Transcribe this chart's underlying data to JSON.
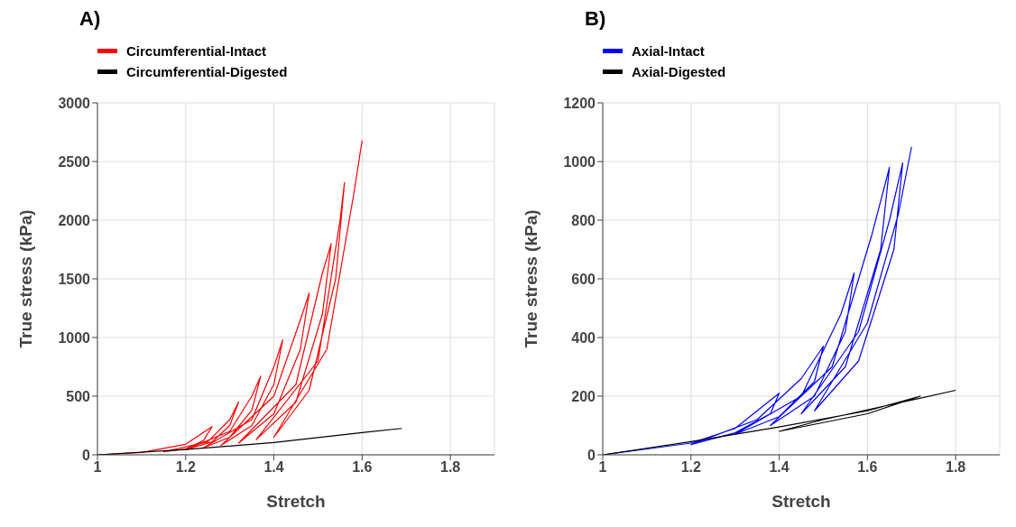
{
  "chart_data": [
    {
      "type": "line",
      "title": "A)",
      "xlabel": "Stretch",
      "ylabel": "True stress (kPa)",
      "xlim": [
        1,
        1.9
      ],
      "xticks": [
        1,
        1.2,
        1.4,
        1.6,
        1.8
      ],
      "ylim": [
        0,
        3000
      ],
      "yticks": [
        0,
        500,
        1000,
        1500,
        2000,
        2500,
        3000
      ],
      "grid": true,
      "legend": "top left",
      "line_style": "solid",
      "marker": "none",
      "series": [
        {
          "name": "Circumferential-Intact",
          "color": "#ff0000",
          "x": [
            1,
            1.1,
            1.2,
            1.26,
            1.24,
            1.2,
            1.15,
            1.25,
            1.3,
            1.32,
            1.3,
            1.26,
            1.2,
            1.3,
            1.35,
            1.37,
            1.35,
            1.3,
            1.24,
            1.35,
            1.4,
            1.42,
            1.4,
            1.35,
            1.28,
            1.4,
            1.46,
            1.48,
            1.46,
            1.4,
            1.32,
            1.45,
            1.51,
            1.53,
            1.51,
            1.45,
            1.36,
            1.5,
            1.55,
            1.56,
            1.54,
            1.48,
            1.4,
            1.52,
            1.58,
            1.6
          ],
          "values": [
            0,
            20,
            90,
            240,
            120,
            50,
            25,
            110,
            300,
            450,
            250,
            110,
            45,
            200,
            500,
            670,
            380,
            150,
            60,
            300,
            750,
            980,
            600,
            250,
            80,
            500,
            1150,
            1380,
            900,
            350,
            100,
            600,
            1550,
            1800,
            1200,
            450,
            130,
            800,
            2000,
            2320,
            1500,
            550,
            150,
            900,
            2200,
            2680
          ]
        },
        {
          "name": "Circumferential-Digested",
          "color": "#000000",
          "x": [
            1,
            1.2,
            1.4,
            1.6,
            1.69
          ],
          "values": [
            0,
            45,
            105,
            190,
            225
          ]
        }
      ]
    },
    {
      "type": "line",
      "title": "B)",
      "xlabel": "Stretch",
      "ylabel": "True stress (kPa)",
      "xlim": [
        1,
        1.9
      ],
      "xticks": [
        1,
        1.2,
        1.4,
        1.6,
        1.8
      ],
      "ylim": [
        0,
        1200
      ],
      "yticks": [
        0,
        200,
        400,
        600,
        800,
        1000,
        1200
      ],
      "grid": true,
      "legend": "top left",
      "line_style": "solid",
      "marker": "none",
      "series": [
        {
          "name": "Axial-Intact",
          "color": "#0000ff",
          "x": [
            1,
            1.2,
            1.3,
            1.4,
            1.38,
            1.3,
            1.2,
            1.35,
            1.45,
            1.5,
            1.48,
            1.4,
            1.3,
            1.45,
            1.54,
            1.57,
            1.55,
            1.48,
            1.38,
            1.52,
            1.61,
            1.65,
            1.63,
            1.55,
            1.45,
            1.58,
            1.65,
            1.68,
            1.66,
            1.58,
            1.48,
            1.6,
            1.67,
            1.7
          ],
          "values": [
            0,
            40,
            90,
            210,
            140,
            75,
            35,
            120,
            260,
            370,
            250,
            130,
            70,
            200,
            480,
            620,
            420,
            200,
            100,
            300,
            750,
            980,
            700,
            300,
            140,
            420,
            800,
            995,
            700,
            320,
            150,
            450,
            820,
            1050
          ]
        },
        {
          "name": "Axial-Digested",
          "color": "#000000",
          "x": [
            1,
            1.2,
            1.4,
            1.6,
            1.72,
            1.6,
            1.4,
            1.5,
            1.8
          ],
          "values": [
            0,
            45,
            95,
            150,
            200,
            140,
            80,
            120,
            220
          ]
        }
      ]
    }
  ]
}
